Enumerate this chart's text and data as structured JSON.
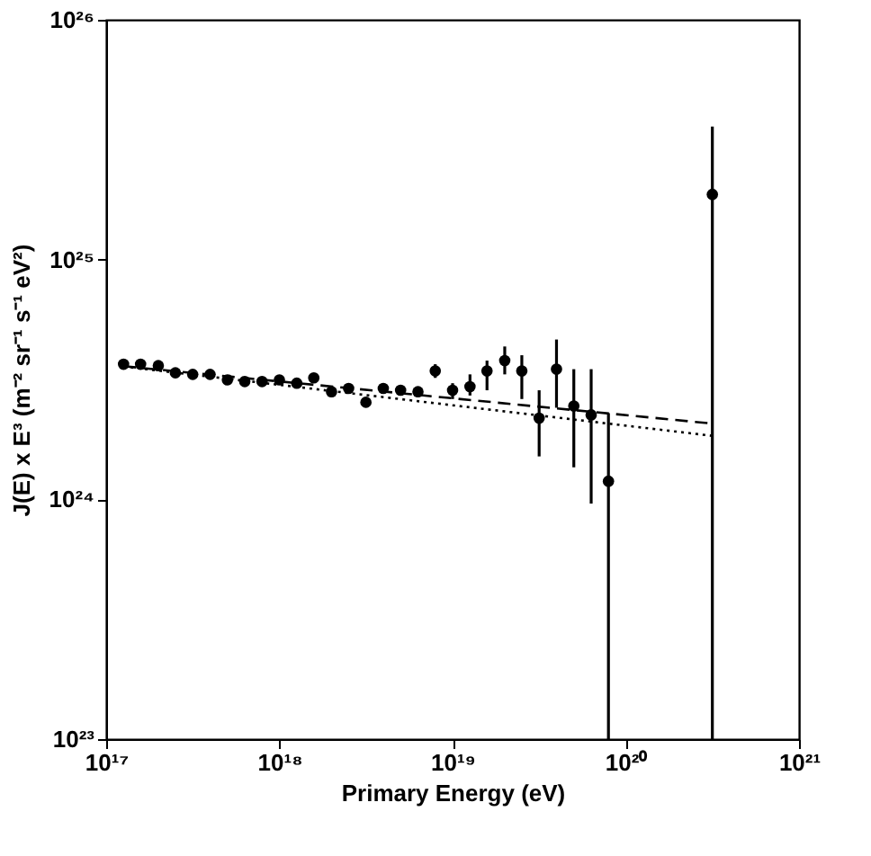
{
  "chart_data": {
    "type": "scatter",
    "xlabel": "Primary Energy (eV)",
    "ylabel": "J(E) x E³  (m⁻² sr⁻¹ s⁻¹ eV²)",
    "log": "xy",
    "grid": false,
    "xlim": [
      1e+17,
      1e+21
    ],
    "ylim": [
      1e+23,
      1e+26
    ],
    "xticks": [
      {
        "value": 1e+17,
        "label": "10¹⁷"
      },
      {
        "value": 1e+18,
        "label": "10¹⁸"
      },
      {
        "value": 1e+19,
        "label": "10¹⁹"
      },
      {
        "value": 1e+20,
        "label": "10²⁰"
      },
      {
        "value": 1e+21,
        "label": "10²¹"
      }
    ],
    "yticks": [
      {
        "value": 1e+23,
        "label": "10²³"
      },
      {
        "value": 1e+24,
        "label": "10²⁴"
      },
      {
        "value": 1e+25,
        "label": "10²⁵"
      },
      {
        "value": 1e+26,
        "label": "10²⁶"
      }
    ],
    "series": [
      {
        "color": "#000000",
        "marker": "circle",
        "x": [
          1.26e+17,
          1.58e+17,
          2e+17,
          2.51e+17,
          3.16e+17,
          3.98e+17,
          5.01e+17,
          6.31e+17,
          7.94e+17,
          1e+18,
          1.26e+18,
          1.58e+18,
          2e+18,
          2.51e+18,
          3.16e+18,
          3.98e+18,
          5.01e+18,
          6.31e+18,
          7.94e+18,
          1e+19,
          1.26e+19,
          1.58e+19,
          2e+19,
          2.51e+19,
          3.16e+19,
          3.98e+19,
          5.01e+19,
          6.31e+19,
          7.94e+19,
          3.16e+20
        ],
        "values": [
          3.66e+24,
          3.66e+24,
          3.61e+24,
          3.37e+24,
          3.32e+24,
          3.32e+24,
          3.15e+24,
          3.1e+24,
          3.1e+24,
          3.15e+24,
          3.05e+24,
          3.21e+24,
          2.81e+24,
          2.9e+24,
          2.54e+24,
          2.9e+24,
          2.85e+24,
          2.81e+24,
          3.43e+24,
          2.85e+24,
          2.95e+24,
          3.43e+24,
          3.79e+24,
          3.43e+24,
          2.18e+24,
          3.49e+24,
          2.45e+24,
          2.25e+24,
          1.19e+24,
          1.87e+25
        ],
        "errors": [
          null,
          null,
          null,
          null,
          null,
          null,
          null,
          null,
          null,
          null,
          null,
          null,
          null,
          null,
          null,
          null,
          null,
          null,
          [
            3.21e+24,
            3.66e+24
          ],
          [
            2.62e+24,
            3.05e+24
          ],
          [
            2.71e+24,
            3.32e+24
          ],
          [
            2.85e+24,
            3.79e+24
          ],
          [
            3.32e+24,
            4.34e+24
          ],
          [
            2.62e+24,
            3.99e+24
          ],
          [
            1.51e+24,
            2.85e+24
          ],
          [
            2.41e+24,
            4.64e+24
          ],
          [
            1.36e+24,
            3.49e+24
          ],
          [
            9.6e+23,
            3.49e+24
          ],
          [
            1e+23,
            2.29e+24
          ],
          [
            1e+23,
            3.59e+25
          ]
        ]
      },
      {
        "type": "line",
        "color": "#000000",
        "line_style": "dashed",
        "x": [
          1.26e+17,
          3.16e+20
        ],
        "values": [
          3.59e+24,
          2.07e+24
        ]
      },
      {
        "type": "line",
        "color": "#000000",
        "line_style": "dotted",
        "x": [
          1.26e+17,
          3.16e+20
        ],
        "values": [
          3.58e+24,
          1.84e+24
        ]
      }
    ]
  }
}
